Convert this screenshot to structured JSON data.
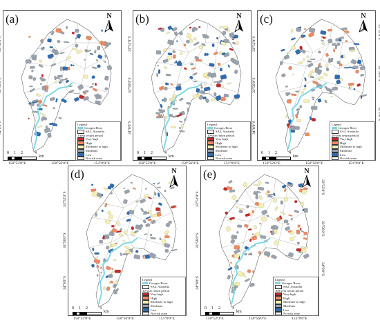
{
  "panels": [
    {
      "label": "(a)",
      "period": "5-year return period"
    },
    {
      "label": "(b)",
      "period": "10-year return period"
    },
    {
      "label": "(c)",
      "period": "20-year return period"
    },
    {
      "label": "(d)",
      "period": "50-year return period"
    },
    {
      "label": "(e)",
      "period": "100-year return period"
    }
  ],
  "north": "N",
  "legend": {
    "title": "Legend",
    "river": "Georges River",
    "sa2": "SA2, Australia",
    "classes": [
      {
        "name": "Very high",
        "color": "#c62828"
      },
      {
        "name": "High",
        "color": "#ef8a62"
      },
      {
        "name": "Moderate to high",
        "color": "#f6efb0"
      },
      {
        "name": "Moderate",
        "color": "#9aa3ad"
      },
      {
        "name": "Low",
        "color": "#2f6db3"
      },
      {
        "name": "No-risk zone",
        "color": "#ffffff"
      }
    ],
    "river_color": "#7fd8e6"
  },
  "scale": {
    "labels": [
      "0",
      "1",
      "2",
      "4"
    ],
    "unit": "km"
  },
  "x_ticks": [
    "150°52'0\"E",
    "150°56'0\"E",
    "151°0'0\"E"
  ],
  "y_ticks": [
    "33°52'0\"S",
    "33°56'0\"S",
    "34°0'0\"S"
  ]
}
